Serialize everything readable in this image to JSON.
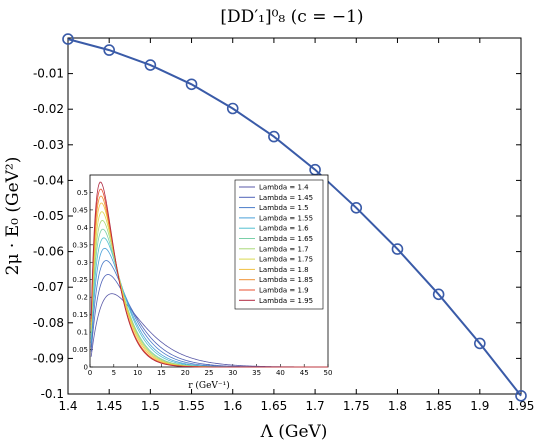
{
  "chart_data": [
    {
      "type": "line",
      "title": "[DD′₁]⁰₈ (c = −1)",
      "xlabel": "Λ (GeV)",
      "ylabel": "2μ · E₀ (GeV²)",
      "xlim": [
        1.4,
        1.95
      ],
      "ylim": [
        -0.1,
        0.0
      ],
      "xticks": [
        "1.4",
        "1.45",
        "1.5",
        "1.55",
        "1.6",
        "1.65",
        "1.7",
        "1.75",
        "1.8",
        "1.85",
        "1.9",
        "1.95"
      ],
      "yticks": [
        "-0.01",
        "-0.02",
        "-0.03",
        "-0.04",
        "-0.05",
        "-0.06",
        "-0.07",
        "-0.08",
        "-0.09",
        "-0.1"
      ],
      "grid": false,
      "color": "#3a5ba8",
      "marker": "circle",
      "x": [
        1.4,
        1.45,
        1.5,
        1.55,
        1.6,
        1.65,
        1.7,
        1.75,
        1.8,
        1.85,
        1.9,
        1.95
      ],
      "y": [
        -0.0003,
        -0.0034,
        -0.0076,
        -0.013,
        -0.0198,
        -0.0277,
        -0.037,
        -0.0477,
        -0.0593,
        -0.072,
        -0.0858,
        -0.1005
      ]
    },
    {
      "type": "line",
      "title": "",
      "xlabel": "r (GeV⁻¹)",
      "ylabel": "",
      "xlim": [
        0,
        50
      ],
      "ylim": [
        0,
        0.55
      ],
      "xticks": [
        "0",
        "5",
        "10",
        "15",
        "20",
        "25",
        "30",
        "35",
        "40",
        "45",
        "50"
      ],
      "yticks": [
        "0",
        "0.05",
        "0.1",
        "0.15",
        "0.2",
        "0.25",
        "0.3",
        "0.35",
        "0.4",
        "0.45",
        "0.5"
      ],
      "legend_position": "top-right",
      "grid": false,
      "series": [
        {
          "name": "Lambda = 1.4",
          "color": "#5a5aa8",
          "peak": 0.21,
          "peak_r": 4.6,
          "tail": 0.003
        },
        {
          "name": "Lambda = 1.45",
          "color": "#4f63b8",
          "peak": 0.265,
          "peak_r": 3.8,
          "tail": 0.006
        },
        {
          "name": "Lambda = 1.5",
          "color": "#4a7cc8",
          "peak": 0.305,
          "peak_r": 3.4,
          "tail": 0.0095
        },
        {
          "name": "Lambda = 1.55",
          "color": "#4aa0d8",
          "peak": 0.34,
          "peak_r": 3.1,
          "tail": 0.0135
        },
        {
          "name": "Lambda = 1.6",
          "color": "#52c0d0",
          "peak": 0.37,
          "peak_r": 2.9,
          "tail": 0.018
        },
        {
          "name": "Lambda = 1.65",
          "color": "#7ad0a8",
          "peak": 0.395,
          "peak_r": 2.7,
          "tail": 0.023
        },
        {
          "name": "Lambda = 1.7",
          "color": "#a8d878",
          "peak": 0.42,
          "peak_r": 2.6,
          "tail": 0.0285
        },
        {
          "name": "Lambda = 1.75",
          "color": "#d8d850",
          "peak": 0.445,
          "peak_r": 2.5,
          "tail": 0.0345
        },
        {
          "name": "Lambda = 1.8",
          "color": "#f0c040",
          "peak": 0.47,
          "peak_r": 2.4,
          "tail": 0.041
        },
        {
          "name": "Lambda = 1.85",
          "color": "#f09030",
          "peak": 0.49,
          "peak_r": 2.3,
          "tail": 0.048
        },
        {
          "name": "Lambda = 1.9",
          "color": "#e85030",
          "peak": 0.51,
          "peak_r": 2.25,
          "tail": 0.0555
        },
        {
          "name": "Lambda = 1.95",
          "color": "#b02840",
          "peak": 0.53,
          "peak_r": 2.2,
          "tail": 0.0635
        }
      ]
    }
  ]
}
